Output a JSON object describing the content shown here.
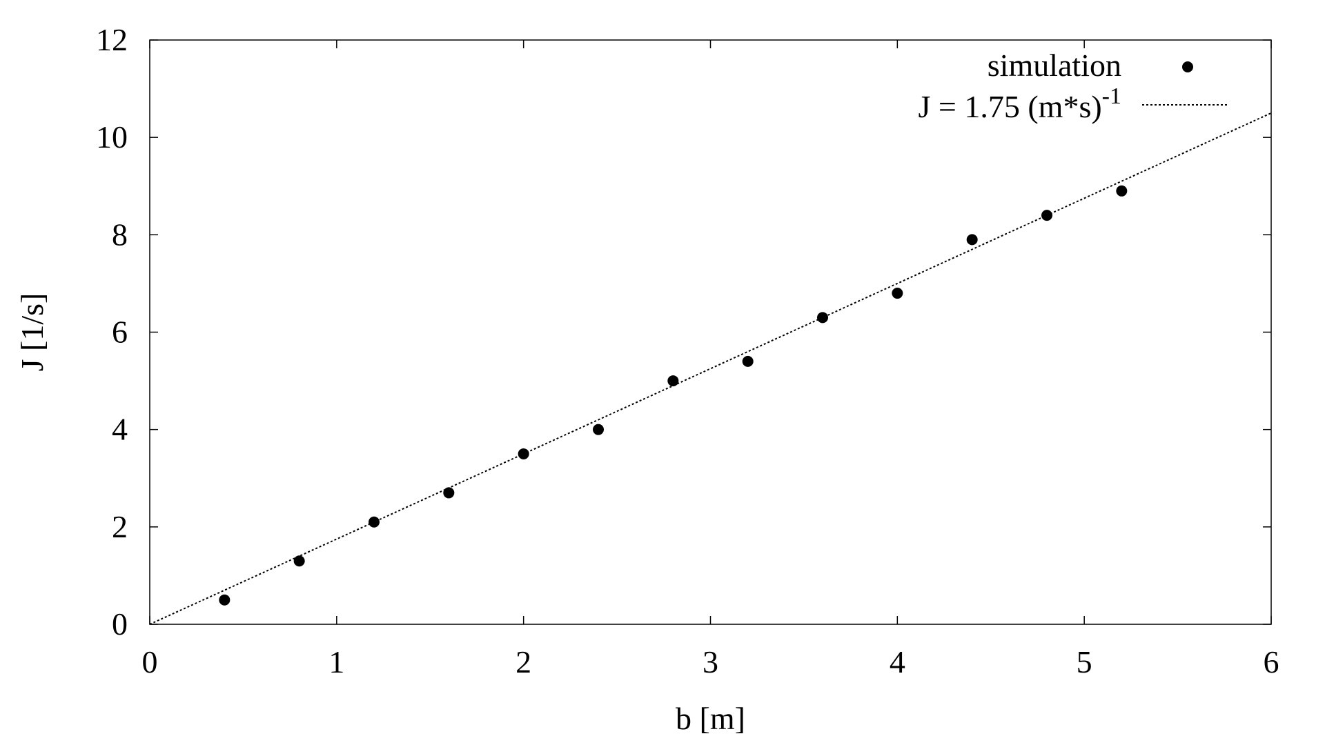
{
  "chart_data": {
    "type": "scatter",
    "xlabel": "b [m]",
    "ylabel": "J [1/s]",
    "xlim": [
      0,
      6
    ],
    "ylim": [
      0,
      12
    ],
    "xticks": [
      0,
      1,
      2,
      3,
      4,
      5,
      6
    ],
    "yticks": [
      0,
      2,
      4,
      6,
      8,
      10,
      12
    ],
    "grid": false,
    "legend_position": "top-right",
    "series": [
      {
        "name": "simulation",
        "kind": "points",
        "color": "#000000",
        "x": [
          0.4,
          0.8,
          1.2,
          1.6,
          2.0,
          2.4,
          2.8,
          3.2,
          3.6,
          4.0,
          4.4,
          4.8,
          5.2
        ],
        "y": [
          0.5,
          1.3,
          2.1,
          2.7,
          3.5,
          4.0,
          5.0,
          5.4,
          6.3,
          6.8,
          7.9,
          8.4,
          8.9
        ]
      },
      {
        "name_main": "J = 1.75 (m*s)",
        "name_sup": "-1",
        "kind": "line",
        "style": "dotted",
        "color": "#000000",
        "x": [
          0,
          6
        ],
        "y": [
          0,
          10.5
        ]
      }
    ]
  }
}
